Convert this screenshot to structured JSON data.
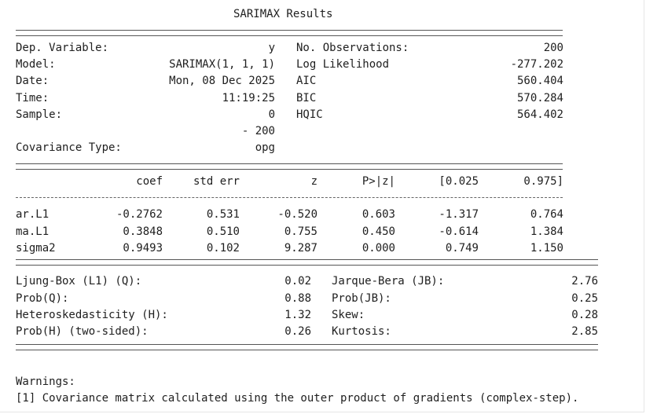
{
  "title": "SARIMAX Results",
  "header_left": [
    {
      "label": "Dep. Variable:",
      "value": "y"
    },
    {
      "label": "Model:",
      "value": "SARIMAX(1, 1, 1)"
    },
    {
      "label": "Date:",
      "value": "Mon, 08 Dec 2025"
    },
    {
      "label": "Time:",
      "value": "11:19:25"
    },
    {
      "label": "Sample:",
      "value": "0"
    },
    {
      "label": "",
      "value": "- 200"
    },
    {
      "label": "Covariance Type:",
      "value": "opg"
    }
  ],
  "header_right": [
    {
      "label": "No. Observations:",
      "value": "200"
    },
    {
      "label": "Log Likelihood",
      "value": "-277.202"
    },
    {
      "label": "AIC",
      "value": "560.404"
    },
    {
      "label": "BIC",
      "value": "570.284"
    },
    {
      "label": "HQIC",
      "value": "564.402"
    }
  ],
  "coef_table": {
    "columns": [
      "coef",
      "std err",
      "z",
      "P>|z|",
      "[0.025",
      "0.975]"
    ],
    "rows": [
      {
        "name": "ar.L1",
        "values": [
          "-0.2762",
          "0.531",
          "-0.520",
          "0.603",
          "-1.317",
          "0.764"
        ]
      },
      {
        "name": "ma.L1",
        "values": [
          "0.3848",
          "0.510",
          "0.755",
          "0.450",
          "-0.614",
          "1.384"
        ]
      },
      {
        "name": "sigma2",
        "values": [
          "0.9493",
          "0.102",
          "9.287",
          "0.000",
          "0.749",
          "1.150"
        ]
      }
    ]
  },
  "diagnostics": [
    {
      "label": "Ljung-Box (L1) (Q):",
      "value": "0.02",
      "label2": "Jarque-Bera (JB):",
      "value2": "2.76"
    },
    {
      "label": "Prob(Q):",
      "value": "0.88",
      "label2": "Prob(JB):",
      "value2": "0.25"
    },
    {
      "label": "Heteroskedasticity (H):",
      "value": "1.32",
      "label2": "Skew:",
      "value2": "0.28"
    },
    {
      "label": "Prob(H) (two-sided):",
      "value": "0.26",
      "label2": "Kurtosis:",
      "value2": "2.85"
    }
  ],
  "warnings": {
    "heading": "Warnings:",
    "items": [
      "[1] Covariance matrix calculated using the outer product of gradients (complex-step)."
    ]
  }
}
